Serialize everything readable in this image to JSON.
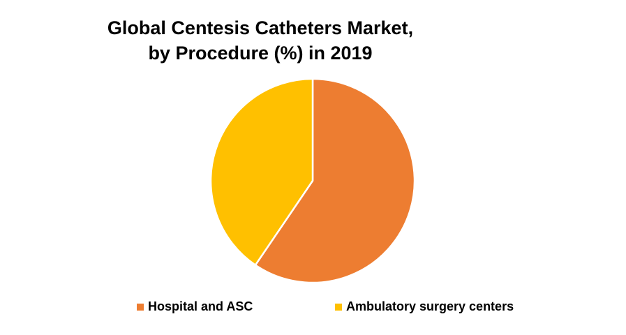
{
  "chart_data": {
    "type": "pie",
    "title_lines": [
      "Global Centesis Catheters Market,",
      "by Procedure  (%) in 2019"
    ],
    "slices": [
      {
        "label": "Hospital and ASC",
        "value": 59.5,
        "color": "#ED7D31"
      },
      {
        "label": "Ambulatory surgery centers",
        "value": 40.5,
        "color": "#FFC000"
      }
    ],
    "legend_position": "bottom"
  }
}
